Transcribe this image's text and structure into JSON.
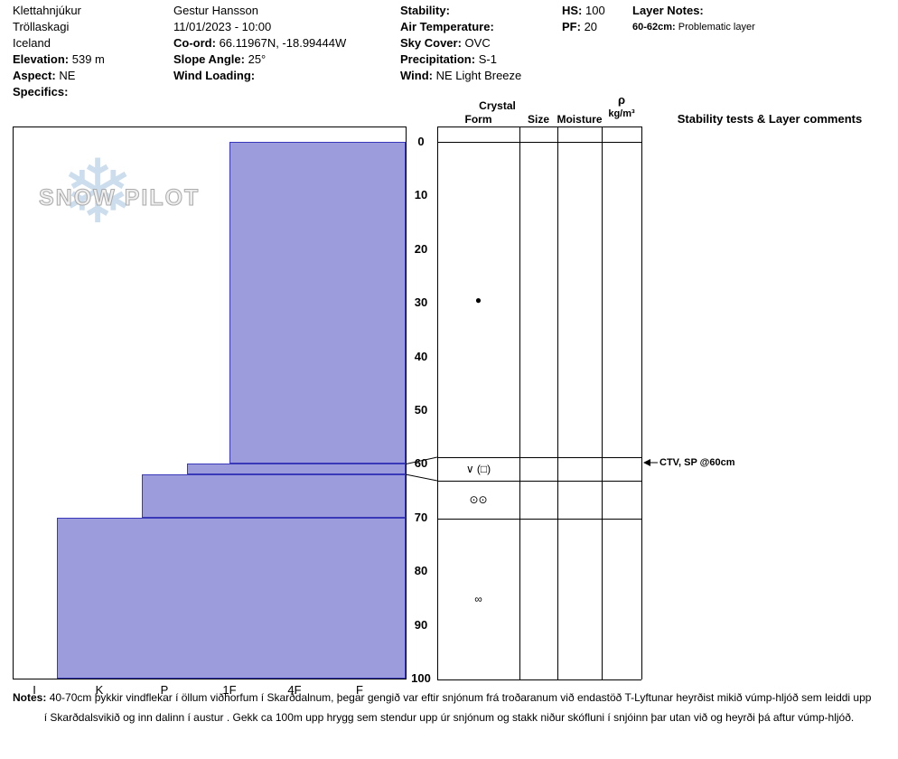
{
  "header": {
    "site": {
      "name": "Klettahnjúkur",
      "region": "Tröllaskagi",
      "country": "Iceland",
      "elevation_label": "Elevation:",
      "elevation": "539 m",
      "aspect_label": "Aspect:",
      "aspect": "NE",
      "specifics_label": "Specifics:"
    },
    "observer": {
      "name": "Gestur Hansson",
      "datetime": "11/01/2023 - 10:00",
      "coord_label": "Co-ord:",
      "coord": "66.11967N, -18.99444W",
      "slope_label": "Slope Angle:",
      "slope": "25°",
      "wind_loading_label": "Wind Loading:"
    },
    "conditions": {
      "stability_label": "Stability:",
      "air_temp_label": "Air Temperature:",
      "sky_label": "Sky Cover:",
      "sky": "OVC",
      "precip_label": "Precipitation:",
      "precip": "S-1",
      "wind_label": "Wind:",
      "wind": "NE Light Breeze"
    },
    "totals": {
      "hs_label": "HS:",
      "hs": "100",
      "pf_label": "PF:",
      "pf": "20"
    },
    "layer_notes": {
      "title": "Layer Notes:",
      "items": [
        {
          "range": "60-62cm:",
          "text": "Problematic layer"
        }
      ]
    }
  },
  "columns": {
    "crystal": "Crystal",
    "form": "Form",
    "size": "Size",
    "moisture": "Moisture",
    "rho": "ρ",
    "rho_unit": "kg/m³",
    "comments": "Stability tests & Layer comments"
  },
  "chart_data": {
    "type": "snow-profile-hardness-step",
    "title": "Snow pit hardness profile",
    "depth_unit": "cm",
    "depth_axis": {
      "min": 0,
      "max": 100,
      "ticks": [
        0,
        10,
        20,
        30,
        40,
        50,
        60,
        70,
        80,
        90,
        100
      ]
    },
    "hardness_axis": [
      "I",
      "K",
      "P",
      "1F",
      "4F",
      "F"
    ],
    "bar_fill": "#9c9cdc",
    "bar_border": "#3838b8",
    "layers": [
      {
        "top_cm": 0,
        "bottom_cm": 60,
        "hardness": "1F",
        "hardness_index": 3.0,
        "grain_form_glyph": "●"
      },
      {
        "top_cm": 60,
        "bottom_cm": 62,
        "hardness": "P-1F",
        "hardness_index": 2.35,
        "grain_form_glyph": "∨ (□)"
      },
      {
        "top_cm": 62,
        "bottom_cm": 70,
        "hardness": "P+",
        "hardness_index": 1.65,
        "grain_form_glyph": "⊙⊙"
      },
      {
        "top_cm": 70,
        "bottom_cm": 100,
        "hardness": "K-I",
        "hardness_index": 0.35,
        "grain_form_glyph": "∞"
      }
    ],
    "annotations": [
      {
        "depth_cm": 60,
        "text": "CTV, SP @60cm"
      }
    ]
  },
  "watermark": {
    "text": "SNOW PILOT"
  },
  "notes": {
    "label": "Notes:",
    "line1": "40-70cm þykkir vindflekar í öllum viðhorfum í Skarðdalnum, þegar gengið var eftir snjónum frá troðaranum við endastöð T-Lyftunar heyrðist mikið vúmp-hljóð sem leiddi upp",
    "line2": "í Skarðdalsvikið og inn dalinn í austur . Gekk ca 100m upp hrygg sem stendur upp úr snjónum og stakk niður skófluni í snjóinn þar utan við og heyrði þá aftur vúmp-hljóð."
  }
}
